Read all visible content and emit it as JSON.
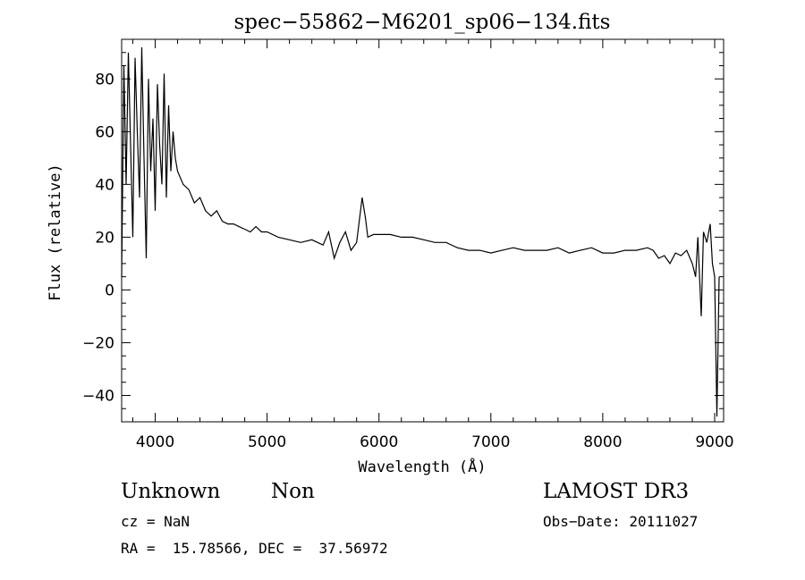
{
  "chart_data": {
    "type": "line",
    "title": "spec−55862−M6201_sp06−134.fits",
    "xlabel": "Wavelength (Å)",
    "ylabel": "Flux (relative)",
    "xlim": [
      3700,
      9080
    ],
    "ylim": [
      -50,
      95
    ],
    "xticks": [
      4000,
      5000,
      6000,
      7000,
      8000,
      9000
    ],
    "xtick_labels": [
      "4000",
      "5000",
      "6000",
      "7000",
      "8000",
      "9000"
    ],
    "yticks": [
      -40,
      -20,
      0,
      20,
      40,
      60,
      80
    ],
    "ytick_labels": [
      "−40",
      "−20",
      "0",
      "20",
      "40",
      "60",
      "80"
    ],
    "grid": false,
    "series": [
      {
        "x": [
          3700,
          3720,
          3740,
          3760,
          3780,
          3800,
          3820,
          3840,
          3860,
          3880,
          3900,
          3920,
          3940,
          3960,
          3980,
          4000,
          4020,
          4040,
          4060,
          4080,
          4100,
          4120,
          4140,
          4160,
          4180,
          4200,
          4250,
          4300,
          4350,
          4400,
          4450,
          4500,
          4550,
          4600,
          4650,
          4700,
          4750,
          4800,
          4850,
          4900,
          4950,
          5000,
          5100,
          5200,
          5300,
          5400,
          5500,
          5550,
          5600,
          5650,
          5700,
          5750,
          5800,
          5850,
          5880,
          5900,
          5950,
          6000,
          6100,
          6200,
          6300,
          6400,
          6500,
          6600,
          6700,
          6800,
          6900,
          7000,
          7100,
          7200,
          7300,
          7400,
          7500,
          7600,
          7700,
          7800,
          7900,
          8000,
          8100,
          8200,
          8300,
          8400,
          8450,
          8500,
          8550,
          8600,
          8650,
          8700,
          8750,
          8800,
          8830,
          8850,
          8880,
          8900,
          8930,
          8960,
          8980,
          9000,
          9020,
          9040
        ],
        "y": [
          5,
          85,
          40,
          90,
          55,
          20,
          88,
          60,
          35,
          92,
          50,
          12,
          80,
          45,
          65,
          30,
          78,
          55,
          40,
          82,
          35,
          70,
          45,
          60,
          50,
          45,
          40,
          38,
          33,
          35,
          30,
          28,
          30,
          26,
          25,
          25,
          24,
          23,
          22,
          24,
          22,
          22,
          20,
          19,
          18,
          19,
          17,
          22,
          12,
          18,
          22,
          15,
          18,
          35,
          27,
          20,
          21,
          21,
          21,
          20,
          20,
          19,
          18,
          18,
          16,
          15,
          15,
          14,
          15,
          16,
          15,
          15,
          15,
          16,
          14,
          15,
          16,
          14,
          14,
          15,
          15,
          16,
          15,
          12,
          13,
          10,
          14,
          13,
          15,
          10,
          5,
          20,
          -10,
          22,
          18,
          25,
          10,
          5,
          -48,
          5
        ]
      }
    ]
  },
  "labels": {
    "object_class": "Unknown",
    "object_subclass": "Non",
    "survey": "LAMOST DR3",
    "cz": "cz = NaN",
    "obs_date": "Obs−Date: 20111027",
    "coords": "RA =  15.78566, DEC =  37.56972"
  }
}
